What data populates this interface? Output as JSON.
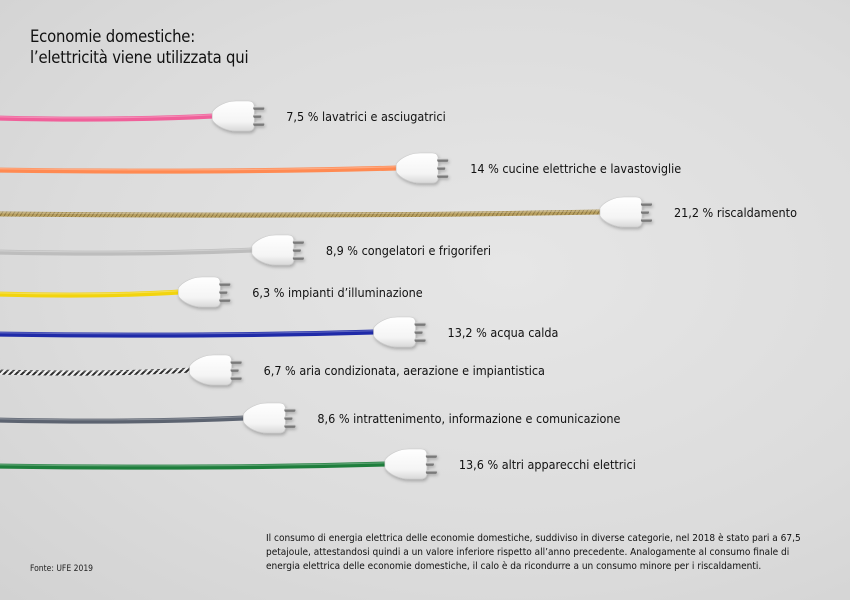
{
  "header": {
    "title_line1": "Economie domestiche:",
    "title_line2": "l’elettricità viene utilizzata qui"
  },
  "chart_data": {
    "type": "bar",
    "unit": "%",
    "categories": [
      "lavatrici e asciugatrici",
      "cucine elettriche e lavastoviglie",
      "riscaldamento",
      "congelatori e frigoriferi",
      "impianti d’illuminazione",
      "acqua calda",
      "aria condizionata, aerazione e impiantistica",
      "intrattenimento, informazione e comunicazione",
      "altri apparecchi elettrici"
    ],
    "values": [
      7.5,
      14,
      21.2,
      8.9,
      6.3,
      13.2,
      6.7,
      8.6,
      13.6
    ],
    "value_labels": [
      "7,5 %",
      "14 %",
      "21,2 %",
      "8,9 %",
      "6,3 %",
      "13,2 %",
      "6,7 %",
      "8,6 %",
      "13,6 %"
    ],
    "cable_colors": [
      "#f0609a",
      "#ff8a52",
      "#b8a060",
      "#bdbdbd",
      "#f2d40e",
      "#1f2aa8",
      "#3a3a3a",
      "#5c6370",
      "#1e7e3c"
    ],
    "cable_styles": [
      "plain",
      "plain",
      "braided",
      "plain",
      "plain",
      "plain",
      "checkered",
      "plain",
      "plain"
    ]
  },
  "footer": {
    "source": "Fonte: UFE 2019",
    "note": "Il consumo di energia elettrica delle economie domestiche, suddiviso in diverse categorie, nel 2018 è stato pari a 67,5 petajoule, attestandosi quindi a un valore inferiore rispetto all’anno precedente. Analogamente al consumo finale di energia elettrica delle economie domestiche, il calo è da ricondurre a un consumo minore per i riscaldamenti."
  }
}
